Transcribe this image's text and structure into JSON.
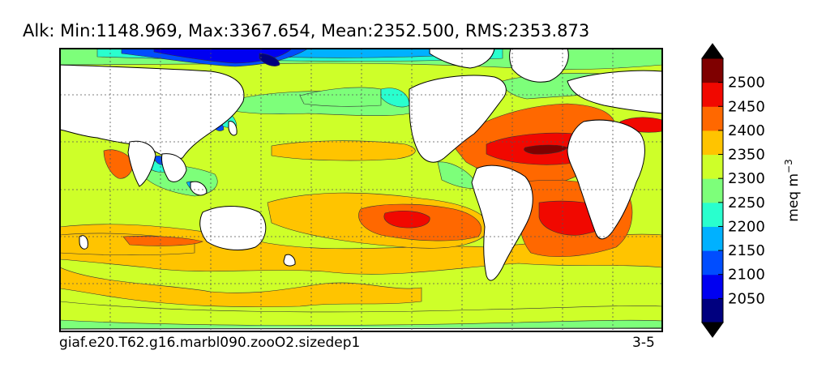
{
  "title": "Alk: Min:1148.969, Max:3367.654, Mean:2352.500, RMS:2353.873",
  "caption_left": "giaf.e20.T62.g16.marbl090.zooO2.sizedep1",
  "caption_right": "3-5",
  "colorbar": {
    "unit": "meq m",
    "unit_exponent": "−3",
    "ticks": [
      "2050",
      "2100",
      "2150",
      "2200",
      "2250",
      "2300",
      "2350",
      "2400",
      "2450",
      "2500"
    ],
    "bands": [
      "#00007f",
      "#0000f1",
      "#004dff",
      "#00b1ff",
      "#29ffce",
      "#7dff7a",
      "#ceff29",
      "#ffc400",
      "#ff6800",
      "#f10800",
      "#7f0000"
    ],
    "under_color": "#000000",
    "over_color": "#000000"
  },
  "colors": {
    "land": "#ffffff",
    "frame": "#000000",
    "gridline": "#555555"
  }
}
